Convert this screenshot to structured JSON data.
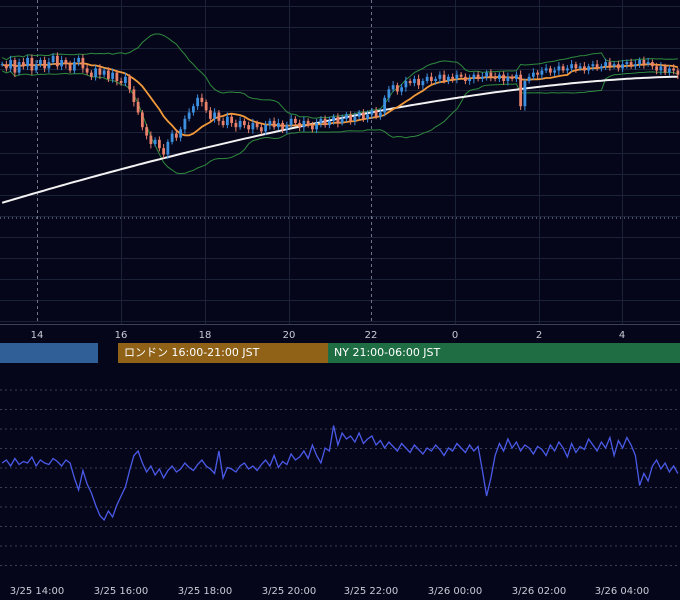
{
  "chart_data": [
    {
      "type": "candlestick",
      "title": "",
      "x_tick_labels": [
        "14",
        "16",
        "18",
        "20",
        "22",
        "0",
        "2",
        "4"
      ],
      "legend": [],
      "overlays": [
        "moving-average-fast",
        "moving-average-slow",
        "bollinger-bands"
      ],
      "colors": {
        "up_candle": "#3d8fe0",
        "down_candle": "#e8826a",
        "ma_fast": "#f29a3a",
        "ma_slow": "#f2f2f2",
        "bollinger": "#2e8b3e",
        "background": "#06061a",
        "grid": "#1c2238"
      },
      "close_profile": [
        0.78,
        0.76,
        0.8,
        0.74,
        0.79,
        0.77,
        0.81,
        0.75,
        0.78,
        0.8,
        0.76,
        0.79,
        0.82,
        0.77,
        0.8,
        0.78,
        0.75,
        0.79,
        0.81,
        0.76,
        0.74,
        0.72,
        0.76,
        0.73,
        0.75,
        0.71,
        0.74,
        0.7,
        0.69,
        0.72,
        0.66,
        0.6,
        0.55,
        0.48,
        0.44,
        0.4,
        0.42,
        0.38,
        0.35,
        0.41,
        0.45,
        0.43,
        0.47,
        0.52,
        0.55,
        0.58,
        0.62,
        0.6,
        0.56,
        0.52,
        0.55,
        0.51,
        0.49,
        0.53,
        0.5,
        0.48,
        0.51,
        0.49,
        0.47,
        0.5,
        0.48,
        0.46,
        0.49,
        0.51,
        0.48,
        0.5,
        0.47,
        0.49,
        0.52,
        0.5,
        0.48,
        0.51,
        0.49,
        0.47,
        0.5,
        0.52,
        0.49,
        0.51,
        0.53,
        0.5,
        0.52,
        0.54,
        0.51,
        0.53,
        0.55,
        0.52,
        0.54,
        0.56,
        0.53,
        0.55,
        0.62,
        0.66,
        0.68,
        0.65,
        0.67,
        0.7,
        0.69,
        0.71,
        0.68,
        0.7,
        0.72,
        0.7,
        0.71,
        0.73,
        0.7,
        0.72,
        0.71,
        0.73,
        0.72,
        0.7,
        0.71,
        0.73,
        0.71,
        0.72,
        0.74,
        0.72,
        0.71,
        0.73,
        0.7,
        0.72,
        0.71,
        0.73,
        0.58,
        0.7,
        0.72,
        0.74,
        0.73,
        0.75,
        0.76,
        0.74,
        0.75,
        0.77,
        0.75,
        0.76,
        0.78,
        0.76,
        0.77,
        0.75,
        0.77,
        0.78,
        0.76,
        0.77,
        0.79,
        0.77,
        0.78,
        0.76,
        0.78,
        0.79,
        0.77,
        0.78,
        0.8,
        0.78,
        0.79,
        0.77,
        0.75,
        0.77,
        0.74,
        0.76,
        0.75,
        0.73
      ],
      "bollinger_width": 0.09
    },
    {
      "type": "line",
      "title": "",
      "x_tick_labels": [
        "3/25 14:00",
        "3/25 16:00",
        "3/25 18:00",
        "3/25 20:00",
        "3/25 22:00",
        "3/26 00:00",
        "3/26 02:00",
        "3/26 04:00"
      ],
      "series": [
        {
          "color": "#4a5ae8",
          "values": [
            0.5,
            0.52,
            0.48,
            0.53,
            0.49,
            0.51,
            0.5,
            0.54,
            0.48,
            0.52,
            0.5,
            0.49,
            0.53,
            0.51,
            0.48,
            0.52,
            0.5,
            0.4,
            0.32,
            0.45,
            0.36,
            0.3,
            0.22,
            0.15,
            0.12,
            0.18,
            0.14,
            0.22,
            0.28,
            0.34,
            0.45,
            0.55,
            0.58,
            0.5,
            0.44,
            0.48,
            0.42,
            0.46,
            0.4,
            0.45,
            0.48,
            0.44,
            0.46,
            0.5,
            0.47,
            0.45,
            0.49,
            0.52,
            0.48,
            0.46,
            0.43,
            0.58,
            0.4,
            0.47,
            0.46,
            0.44,
            0.48,
            0.5,
            0.46,
            0.48,
            0.45,
            0.49,
            0.52,
            0.48,
            0.55,
            0.47,
            0.51,
            0.49,
            0.56,
            0.52,
            0.54,
            0.58,
            0.53,
            0.62,
            0.55,
            0.5,
            0.6,
            0.58,
            0.75,
            0.62,
            0.7,
            0.66,
            0.68,
            0.64,
            0.7,
            0.63,
            0.66,
            0.68,
            0.62,
            0.65,
            0.6,
            0.64,
            0.61,
            0.58,
            0.63,
            0.6,
            0.57,
            0.62,
            0.59,
            0.56,
            0.6,
            0.58,
            0.62,
            0.59,
            0.55,
            0.6,
            0.58,
            0.63,
            0.6,
            0.57,
            0.62,
            0.58,
            0.61,
            0.45,
            0.28,
            0.4,
            0.55,
            0.63,
            0.58,
            0.66,
            0.6,
            0.64,
            0.58,
            0.62,
            0.6,
            0.56,
            0.61,
            0.59,
            0.55,
            0.62,
            0.58,
            0.64,
            0.6,
            0.54,
            0.63,
            0.57,
            0.61,
            0.59,
            0.66,
            0.62,
            0.58,
            0.64,
            0.6,
            0.67,
            0.55,
            0.65,
            0.6,
            0.67,
            0.62,
            0.55,
            0.35,
            0.43,
            0.38,
            0.48,
            0.52,
            0.46,
            0.5,
            0.44,
            0.48,
            0.43
          ]
        }
      ]
    }
  ],
  "sessions": [
    {
      "label": "",
      "color": "#2f5f96"
    },
    {
      "label": "ロンドン 16:00-21:00 JST",
      "color": "#8f6218"
    },
    {
      "label": "NY 21:00-06:00 JST",
      "color": "#1f6d43"
    }
  ]
}
